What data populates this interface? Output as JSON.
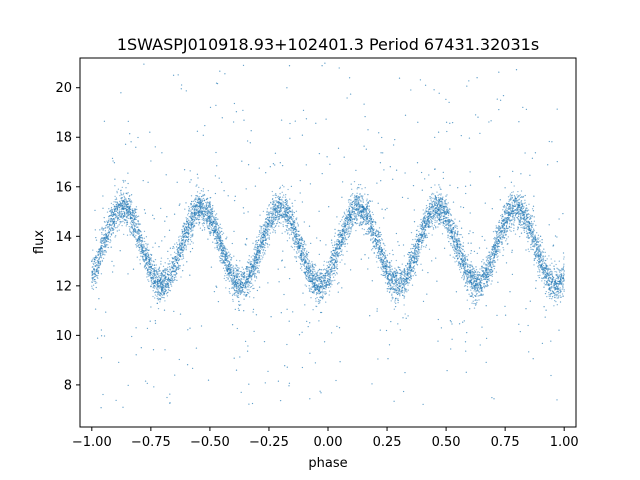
{
  "chart_data": {
    "type": "scatter",
    "title": "1SWASPJ010918.93+102401.3 Period 67431.32031s",
    "xlabel": "phase",
    "ylabel": "flux",
    "xlim": [
      -1.05,
      1.05
    ],
    "ylim": [
      6.3,
      21.2
    ],
    "xticks": [
      -1.0,
      -0.75,
      -0.5,
      -0.25,
      0.0,
      0.25,
      0.5,
      0.75,
      1.0
    ],
    "xtick_labels": [
      "−1.00",
      "−0.75",
      "−0.50",
      "−0.25",
      "0.00",
      "0.25",
      "0.50",
      "0.75",
      "1.00"
    ],
    "yticks": [
      8,
      10,
      12,
      14,
      16,
      18,
      20
    ],
    "ytick_labels": [
      "8",
      "10",
      "12",
      "14",
      "16",
      "18",
      "20"
    ],
    "grid": false,
    "marker_color": "#1f77b4",
    "light_curve_model": {
      "phase_range": [
        -1.0,
        1.0
      ],
      "mean_flux": 13.6,
      "amplitude": 1.55,
      "cycles_over_phase_range": 6,
      "peak_phases": [
        -0.87,
        -0.54,
        -0.2,
        0.13,
        0.47,
        0.8
      ],
      "trough_phases": [
        -0.7,
        -0.37,
        -0.03,
        0.3,
        0.63,
        0.97
      ],
      "band_scatter": 0.55,
      "outlier_flux_range": [
        7.0,
        21.0
      ]
    },
    "series": [
      {
        "x": [
          -1.0,
          -0.95,
          -0.87,
          -0.8,
          -0.7,
          -0.62,
          -0.54,
          -0.45,
          -0.37,
          -0.28,
          -0.2,
          -0.1,
          -0.03,
          0.05,
          0.13,
          0.22,
          0.3,
          0.38,
          0.47,
          0.55,
          0.63,
          0.72,
          0.8,
          0.9,
          0.97,
          1.0
        ],
        "y": [
          13.0,
          14.3,
          15.1,
          14.5,
          12.2,
          13.7,
          15.1,
          14.2,
          12.1,
          13.6,
          15.1,
          13.8,
          12.1,
          13.6,
          15.1,
          14.0,
          12.1,
          13.7,
          15.1,
          14.2,
          12.2,
          13.6,
          15.1,
          14.0,
          12.1,
          12.6
        ]
      }
    ]
  }
}
